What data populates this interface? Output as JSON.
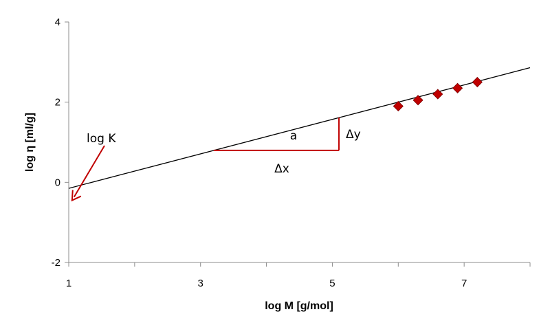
{
  "chart_data": {
    "type": "scatter",
    "xlabel": "log M [g/mol]",
    "ylabel": "log η [ml/g]",
    "xlim": [
      1,
      8
    ],
    "ylim": [
      -2,
      4
    ],
    "x_ticks": [
      "1",
      "3",
      "5",
      "7"
    ],
    "y_ticks": [
      "-2",
      "0",
      "2",
      "4"
    ],
    "grid": false,
    "legend": "none",
    "series": [
      {
        "points": [
          {
            "x": 6.0,
            "y": 1.9
          },
          {
            "x": 6.3,
            "y": 2.05
          },
          {
            "x": 6.6,
            "y": 2.2
          },
          {
            "x": 6.9,
            "y": 2.35
          },
          {
            "x": 7.2,
            "y": 2.5
          }
        ],
        "color": "#c00000",
        "marker": "diamond"
      }
    ],
    "fit_line": {
      "intercept": -0.58,
      "slope": 0.43,
      "x_range": [
        1,
        8
      ],
      "color": "#000000"
    },
    "annotations": {
      "logK": {
        "text": "log K",
        "color": "#c00000"
      },
      "slope": {
        "text": "a"
      },
      "dx": {
        "text": "Δx"
      },
      "dy": {
        "text": "Δy"
      },
      "triangle": {
        "x_start": 3.2,
        "x_end": 5.1,
        "color": "#c00000"
      }
    }
  }
}
